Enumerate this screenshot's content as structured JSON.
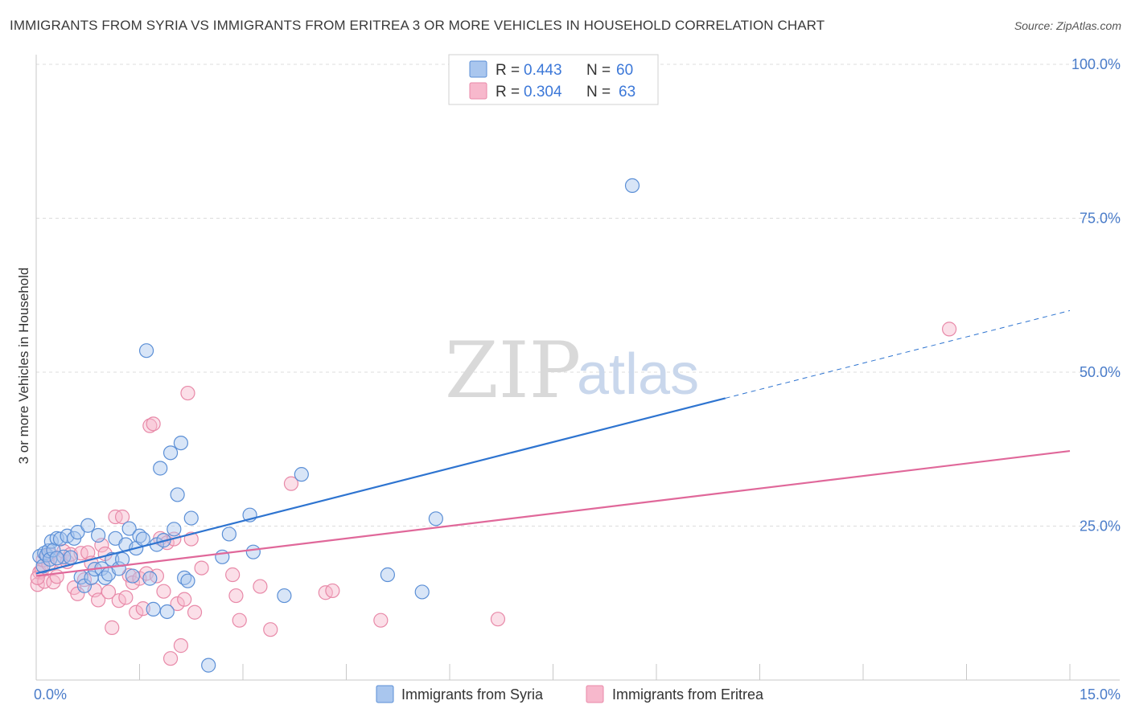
{
  "title": "IMMIGRANTS FROM SYRIA VS IMMIGRANTS FROM ERITREA 3 OR MORE VEHICLES IN HOUSEHOLD CORRELATION CHART",
  "source": "Source: ZipAtlas.com",
  "watermark": {
    "zip": "ZIP",
    "atlas": "atlas"
  },
  "colors": {
    "syria_fill": "#a9c6ee",
    "syria_stroke": "#5b8fd6",
    "syria_line": "#2e74d0",
    "eritrea_fill": "#f7b8cc",
    "eritrea_stroke": "#e889a8",
    "eritrea_line": "#e0689a",
    "grid": "#dcdcdc",
    "axis_label": "#4a7cc9"
  },
  "legend": {
    "syria": {
      "r_label": "R = ",
      "r_value": "0.443",
      "n_label": "N = ",
      "n_value": "60"
    },
    "eritrea": {
      "r_label": "R = ",
      "r_value": "0.304",
      "n_label": "N = ",
      "n_value": "63"
    }
  },
  "chart_data": {
    "type": "scatter",
    "title": "IMMIGRANTS FROM SYRIA VS IMMIGRANTS FROM ERITREA 3 OR MORE VEHICLES IN HOUSEHOLD CORRELATION CHART",
    "xlabel": "",
    "ylabel": "3 or more Vehicles in Household",
    "xlim": [
      0,
      15
    ],
    "ylim": [
      0,
      100
    ],
    "x_tick_labels": [
      "0.0%",
      "15.0%"
    ],
    "y_tick_labels": [
      "100.0%",
      "75.0%",
      "50.0%",
      "25.0%"
    ],
    "y_ticks": [
      100,
      75,
      50,
      25
    ],
    "legend_position": "top-center",
    "series": [
      {
        "name": "Immigrants from Syria",
        "r": 0.443,
        "n": 60,
        "trend": {
          "x0": 0,
          "y0": 17.3,
          "x1": 15,
          "y1": 60.0,
          "solid_until_x": 10.0
        },
        "points": [
          [
            0.05,
            20.1
          ],
          [
            0.1,
            18.5
          ],
          [
            0.12,
            20.6
          ],
          [
            0.15,
            20.3
          ],
          [
            0.18,
            21.0
          ],
          [
            0.2,
            19.6
          ],
          [
            0.22,
            22.5
          ],
          [
            0.25,
            21.1
          ],
          [
            0.3,
            23.0
          ],
          [
            0.35,
            22.9
          ],
          [
            0.4,
            20.0
          ],
          [
            0.45,
            23.4
          ],
          [
            0.5,
            19.9
          ],
          [
            0.55,
            23.0
          ],
          [
            0.6,
            24.0
          ],
          [
            0.65,
            16.7
          ],
          [
            0.7,
            15.3
          ],
          [
            0.75,
            25.1
          ],
          [
            0.8,
            16.6
          ],
          [
            0.85,
            18.0
          ],
          [
            0.9,
            23.5
          ],
          [
            0.95,
            18.1
          ],
          [
            1.0,
            16.6
          ],
          [
            1.05,
            17.2
          ],
          [
            1.1,
            19.6
          ],
          [
            1.15,
            23.0
          ],
          [
            1.2,
            18.1
          ],
          [
            1.25,
            19.6
          ],
          [
            1.3,
            22.0
          ],
          [
            1.35,
            24.6
          ],
          [
            1.4,
            16.9
          ],
          [
            1.45,
            21.4
          ],
          [
            1.5,
            23.4
          ],
          [
            1.55,
            22.9
          ],
          [
            1.6,
            53.5
          ],
          [
            1.65,
            16.5
          ],
          [
            1.7,
            11.5
          ],
          [
            1.75,
            22.0
          ],
          [
            1.8,
            34.4
          ],
          [
            1.85,
            22.7
          ],
          [
            1.9,
            11.1
          ],
          [
            1.95,
            36.9
          ],
          [
            2.0,
            24.5
          ],
          [
            2.05,
            30.1
          ],
          [
            2.1,
            38.5
          ],
          [
            2.15,
            16.6
          ],
          [
            2.2,
            16.1
          ],
          [
            2.25,
            26.3
          ],
          [
            2.5,
            2.4
          ],
          [
            2.7,
            20.0
          ],
          [
            2.8,
            23.7
          ],
          [
            3.1,
            26.8
          ],
          [
            3.15,
            20.8
          ],
          [
            3.6,
            13.7
          ],
          [
            3.85,
            33.4
          ],
          [
            5.1,
            17.1
          ],
          [
            5.6,
            14.3
          ],
          [
            5.8,
            26.2
          ],
          [
            8.65,
            80.3
          ],
          [
            0.3,
            19.8
          ]
        ]
      },
      {
        "name": "Immigrants from Eritrea",
        "r": 0.304,
        "n": 63,
        "trend": {
          "x0": 0,
          "y0": 16.9,
          "x1": 15,
          "y1": 37.2
        },
        "points": [
          [
            0.02,
            15.5
          ],
          [
            0.05,
            17.5
          ],
          [
            0.08,
            17.8
          ],
          [
            0.1,
            19.5
          ],
          [
            0.12,
            16.0
          ],
          [
            0.15,
            20.2
          ],
          [
            0.18,
            18.8
          ],
          [
            0.2,
            20.4
          ],
          [
            0.25,
            15.9
          ],
          [
            0.3,
            16.8
          ],
          [
            0.35,
            19.4
          ],
          [
            0.4,
            20.9
          ],
          [
            0.45,
            19.2
          ],
          [
            0.5,
            20.4
          ],
          [
            0.55,
            15.0
          ],
          [
            0.6,
            14.0
          ],
          [
            0.65,
            20.6
          ],
          [
            0.7,
            16.3
          ],
          [
            0.75,
            20.7
          ],
          [
            0.8,
            19.0
          ],
          [
            0.85,
            14.6
          ],
          [
            0.9,
            13.0
          ],
          [
            0.95,
            21.9
          ],
          [
            1.0,
            20.5
          ],
          [
            1.05,
            14.3
          ],
          [
            1.1,
            8.5
          ],
          [
            1.15,
            26.5
          ],
          [
            1.2,
            12.9
          ],
          [
            1.25,
            26.5
          ],
          [
            1.3,
            13.4
          ],
          [
            1.35,
            17.0
          ],
          [
            1.4,
            15.8
          ],
          [
            1.45,
            11.0
          ],
          [
            1.5,
            16.5
          ],
          [
            1.55,
            11.6
          ],
          [
            1.6,
            17.3
          ],
          [
            1.65,
            41.3
          ],
          [
            1.7,
            41.6
          ],
          [
            1.75,
            16.9
          ],
          [
            1.8,
            23.0
          ],
          [
            1.85,
            14.4
          ],
          [
            1.9,
            22.3
          ],
          [
            1.95,
            3.5
          ],
          [
            2.0,
            22.9
          ],
          [
            2.05,
            12.4
          ],
          [
            2.1,
            5.6
          ],
          [
            2.15,
            13.1
          ],
          [
            2.2,
            46.6
          ],
          [
            2.25,
            22.9
          ],
          [
            2.3,
            11.0
          ],
          [
            2.4,
            18.2
          ],
          [
            2.85,
            17.1
          ],
          [
            2.9,
            13.7
          ],
          [
            2.95,
            9.7
          ],
          [
            3.25,
            15.2
          ],
          [
            3.4,
            8.2
          ],
          [
            3.7,
            31.9
          ],
          [
            4.2,
            14.2
          ],
          [
            4.3,
            14.5
          ],
          [
            5.0,
            9.7
          ],
          [
            6.7,
            9.9
          ],
          [
            13.25,
            57.0
          ],
          [
            0.02,
            16.6
          ]
        ]
      }
    ]
  }
}
